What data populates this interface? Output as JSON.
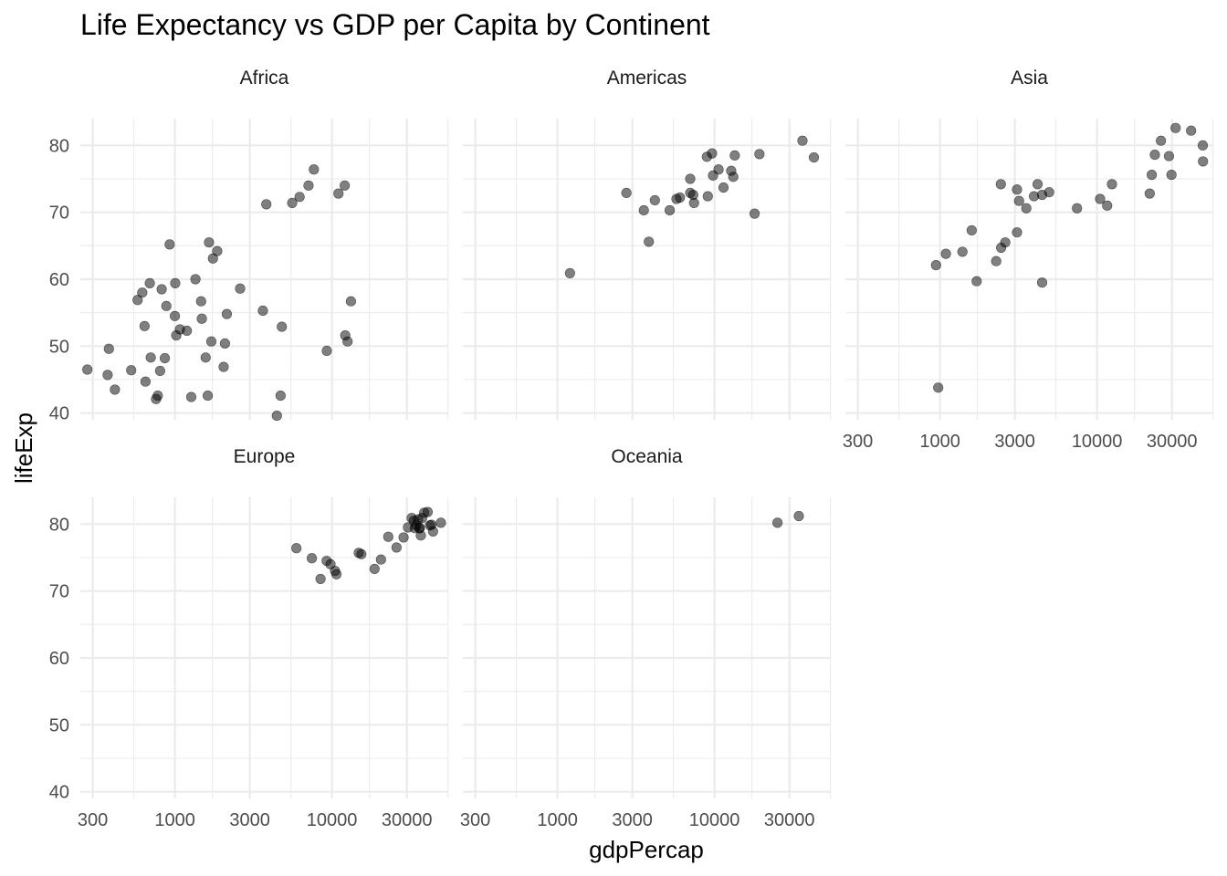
{
  "chart_data": {
    "type": "scatter",
    "title": "Life Expectancy vs GDP per Capita by Continent",
    "xlabel": "gdpPercap",
    "ylabel": "lifeExp",
    "x_scale": "log10",
    "xlim": [
      250,
      55000
    ],
    "ylim": [
      39,
      84
    ],
    "x_ticks": [
      300,
      1000,
      3000,
      10000,
      30000
    ],
    "x_tick_labels": [
      "300",
      "1000",
      "3000",
      "10000",
      "30000"
    ],
    "y_ticks": [
      40,
      50,
      60,
      70,
      80
    ],
    "y_tick_labels": [
      "40",
      "50",
      "60",
      "70",
      "80"
    ],
    "grid": true,
    "point_color": "#000000",
    "point_alpha": 0.5,
    "panels": [
      {
        "name": "Africa",
        "points": [
          [
            277,
            46.5
          ],
          [
            380,
            49.6
          ],
          [
            373,
            45.7
          ],
          [
            415,
            43.5
          ],
          [
            527,
            46.4
          ],
          [
            579,
            56.9
          ],
          [
            620,
            58.0
          ],
          [
            641,
            53.0
          ],
          [
            650,
            44.7
          ],
          [
            692,
            59.4
          ],
          [
            702,
            48.3
          ],
          [
            759,
            42.1
          ],
          [
            778,
            42.6
          ],
          [
            805,
            46.3
          ],
          [
            824,
            58.5
          ],
          [
            863,
            48.2
          ],
          [
            882,
            56.0
          ],
          [
            926,
            65.2
          ],
          [
            1000,
            54.5
          ],
          [
            1005,
            59.4
          ],
          [
            1020,
            51.6
          ],
          [
            1077,
            52.5
          ],
          [
            1192,
            52.3
          ],
          [
            1271,
            42.4
          ],
          [
            1352,
            60.0
          ],
          [
            1468,
            56.7
          ],
          [
            1484,
            54.1
          ],
          [
            1570,
            48.3
          ],
          [
            1619,
            42.6
          ],
          [
            1649,
            65.5
          ],
          [
            1706,
            50.7
          ],
          [
            1747,
            63.1
          ],
          [
            1860,
            64.2
          ],
          [
            2043,
            46.9
          ],
          [
            2083,
            50.4
          ],
          [
            2141,
            54.8
          ],
          [
            2602,
            58.6
          ],
          [
            3633,
            55.3
          ],
          [
            3820,
            71.2
          ],
          [
            4458,
            39.6
          ],
          [
            4708,
            42.6
          ],
          [
            4797,
            52.9
          ],
          [
            5582,
            71.4
          ],
          [
            6223,
            72.3
          ],
          [
            7093,
            74.0
          ],
          [
            7670,
            76.4
          ],
          [
            9270,
            49.3
          ],
          [
            11000,
            72.8
          ],
          [
            12058,
            74.0
          ],
          [
            12154,
            51.6
          ],
          [
            12570,
            50.7
          ],
          [
            13207,
            56.7
          ]
        ]
      },
      {
        "name": "Americas",
        "points": [
          [
            1202,
            60.9
          ],
          [
            2749,
            72.9
          ],
          [
            3548,
            70.3
          ],
          [
            3820,
            65.6
          ],
          [
            4173,
            71.8
          ],
          [
            5186,
            70.3
          ],
          [
            5728,
            72.0
          ],
          [
            6025,
            72.2
          ],
          [
            7007,
            75.0
          ],
          [
            7008,
            72.9
          ],
          [
            7409,
            71.4
          ],
          [
            7321,
            72.6
          ],
          [
            8948,
            78.3
          ],
          [
            9065,
            72.4
          ],
          [
            9645,
            78.8
          ],
          [
            9788,
            75.5
          ],
          [
            10611,
            76.4
          ],
          [
            11416,
            73.7
          ],
          [
            12779,
            76.2
          ],
          [
            13172,
            75.3
          ],
          [
            13460,
            78.5
          ],
          [
            18009,
            69.8
          ],
          [
            19328,
            78.7
          ],
          [
            36319,
            80.7
          ],
          [
            42952,
            78.2
          ]
        ]
      },
      {
        "name": "Asia",
        "points": [
          [
            944,
            62.1
          ],
          [
            975,
            43.8
          ],
          [
            1091,
            63.8
          ],
          [
            1391,
            64.1
          ],
          [
            1593,
            67.3
          ],
          [
            1713,
            59.7
          ],
          [
            2281,
            62.7
          ],
          [
            2452,
            64.7
          ],
          [
            2442,
            74.2
          ],
          [
            2605,
            65.5
          ],
          [
            3096,
            67.0
          ],
          [
            3095,
            73.4
          ],
          [
            3190,
            71.7
          ],
          [
            3548,
            70.6
          ],
          [
            3970,
            72.4
          ],
          [
            4185,
            74.2
          ],
          [
            4471,
            72.6
          ],
          [
            4472,
            59.5
          ],
          [
            4959,
            73.0
          ],
          [
            7458,
            70.6
          ],
          [
            10461,
            72.0
          ],
          [
            11606,
            71.0
          ],
          [
            12452,
            74.2
          ],
          [
            21655,
            72.8
          ],
          [
            22316,
            75.6
          ],
          [
            23348,
            78.6
          ],
          [
            25523,
            80.7
          ],
          [
            28718,
            78.4
          ],
          [
            29796,
            75.6
          ],
          [
            31656,
            82.6
          ],
          [
            39725,
            82.2
          ],
          [
            47143,
            80.0
          ],
          [
            47306,
            77.6
          ]
        ]
      },
      {
        "name": "Europe",
        "points": [
          [
            5937,
            76.4
          ],
          [
            7446,
            74.9
          ],
          [
            8458,
            71.8
          ],
          [
            9253,
            74.5
          ],
          [
            9786,
            74.0
          ],
          [
            10461,
            73.0
          ],
          [
            10681,
            72.5
          ],
          [
            14811,
            75.7
          ],
          [
            15389,
            75.5
          ],
          [
            18678,
            73.3
          ],
          [
            20510,
            74.7
          ],
          [
            22833,
            78.1
          ],
          [
            25768,
            76.5
          ],
          [
            28570,
            78.0
          ],
          [
            30470,
            79.5
          ],
          [
            32170,
            80.9
          ],
          [
            33207,
            80.5
          ],
          [
            33692,
            79.4
          ],
          [
            34435,
            79.8
          ],
          [
            35278,
            80.7
          ],
          [
            36126,
            79.4
          ],
          [
            36181,
            79.4
          ],
          [
            36798,
            78.3
          ],
          [
            37506,
            80.9
          ],
          [
            38660,
            81.7
          ],
          [
            40676,
            81.8
          ],
          [
            42000,
            79.8
          ],
          [
            43000,
            79.9
          ],
          [
            44000,
            78.9
          ],
          [
            49357,
            80.2
          ]
        ]
      },
      {
        "name": "Oceania",
        "points": [
          [
            25185,
            80.2
          ],
          [
            34435,
            81.2
          ]
        ]
      }
    ]
  }
}
